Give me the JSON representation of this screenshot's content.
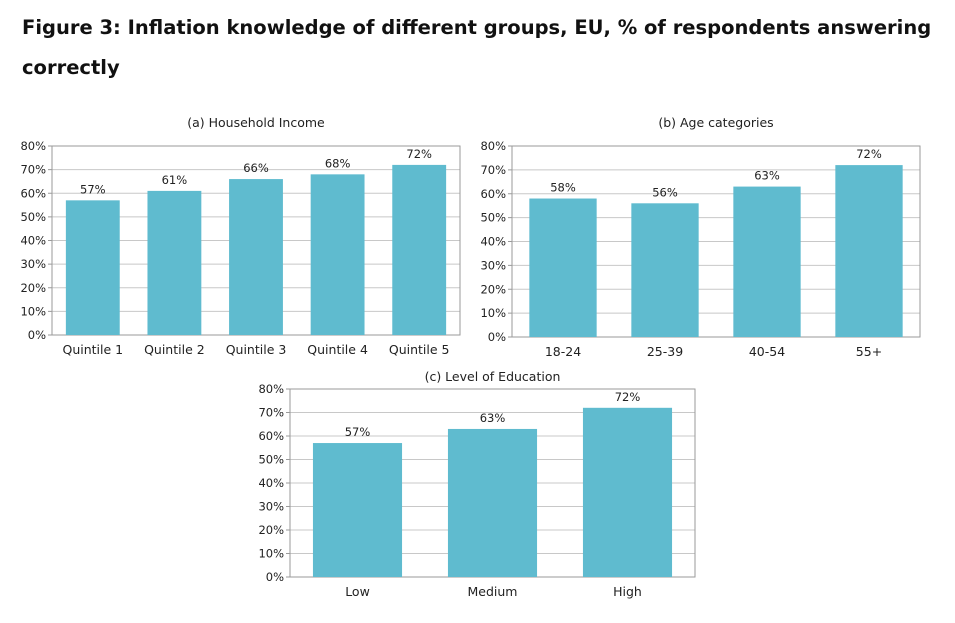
{
  "figure_title": "Figure 3: Inflation knowledge of different groups, EU, % of respondents answering correctly",
  "colors": {
    "bar": "#5fbbcf",
    "grid": "#c8c8c8",
    "frame": "#9a9a9a"
  },
  "chart_data": [
    {
      "type": "bar",
      "title": "(a) Household Income",
      "categories": [
        "Quintile 1",
        "Quintile 2",
        "Quintile 3",
        "Quintile 4",
        "Quintile 5"
      ],
      "values": [
        57,
        61,
        66,
        68,
        72
      ],
      "value_labels": [
        "57%",
        "61%",
        "66%",
        "68%",
        "72%"
      ],
      "yticks": [
        "0%",
        "10%",
        "20%",
        "30%",
        "40%",
        "50%",
        "60%",
        "70%",
        "80%"
      ],
      "ylim": [
        0,
        80
      ],
      "grid": true
    },
    {
      "type": "bar",
      "title": "(b) Age categories",
      "categories": [
        "18-24",
        "25-39",
        "40-54",
        "55+"
      ],
      "values": [
        58,
        56,
        63,
        72
      ],
      "value_labels": [
        "58%",
        "56%",
        "63%",
        "72%"
      ],
      "yticks": [
        "0%",
        "10%",
        "20%",
        "30%",
        "40%",
        "50%",
        "60%",
        "70%",
        "80%"
      ],
      "ylim": [
        0,
        80
      ],
      "grid": true
    },
    {
      "type": "bar",
      "title": "(c) Level of Education",
      "categories": [
        "Low",
        "Medium",
        "High"
      ],
      "values": [
        57,
        63,
        72
      ],
      "value_labels": [
        "57%",
        "63%",
        "72%"
      ],
      "yticks": [
        "0%",
        "10%",
        "20%",
        "30%",
        "40%",
        "50%",
        "60%",
        "70%",
        "80%"
      ],
      "ylim": [
        0,
        80
      ],
      "grid": true
    }
  ]
}
